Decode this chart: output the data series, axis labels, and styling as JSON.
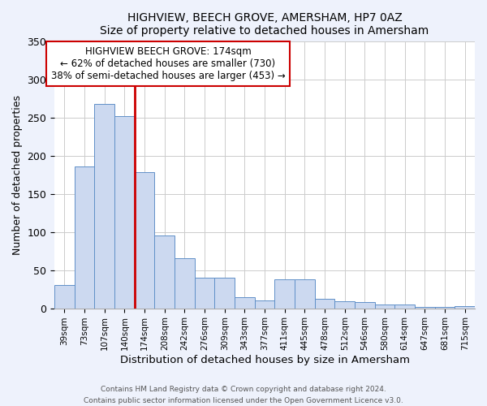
{
  "title": "HIGHVIEW, BEECH GROVE, AMERSHAM, HP7 0AZ",
  "subtitle": "Size of property relative to detached houses in Amersham",
  "xlabel": "Distribution of detached houses by size in Amersham",
  "ylabel": "Number of detached properties",
  "bin_labels": [
    "39sqm",
    "73sqm",
    "107sqm",
    "140sqm",
    "174sqm",
    "208sqm",
    "242sqm",
    "276sqm",
    "309sqm",
    "343sqm",
    "377sqm",
    "411sqm",
    "445sqm",
    "478sqm",
    "512sqm",
    "546sqm",
    "580sqm",
    "614sqm",
    "647sqm",
    "681sqm",
    "715sqm"
  ],
  "bar_heights": [
    30,
    186,
    268,
    252,
    178,
    95,
    65,
    40,
    40,
    14,
    10,
    38,
    38,
    12,
    9,
    8,
    5,
    5,
    2,
    2,
    3
  ],
  "bar_color": "#ccd9f0",
  "bar_edge_color": "#6090c8",
  "vline_color": "#cc0000",
  "vline_bar_index": 4,
  "annotation_title": "HIGHVIEW BEECH GROVE: 174sqm",
  "annotation_line1": "← 62% of detached houses are smaller (730)",
  "annotation_line2": "38% of semi-detached houses are larger (453) →",
  "ylim_max": 350,
  "yticks": [
    0,
    50,
    100,
    150,
    200,
    250,
    300,
    350
  ],
  "footer1": "Contains HM Land Registry data © Crown copyright and database right 2024.",
  "footer2": "Contains public sector information licensed under the Open Government Licence v3.0.",
  "bg_color": "#eef2fc",
  "plot_bg_color": "#ffffff",
  "grid_color": "#cccccc"
}
